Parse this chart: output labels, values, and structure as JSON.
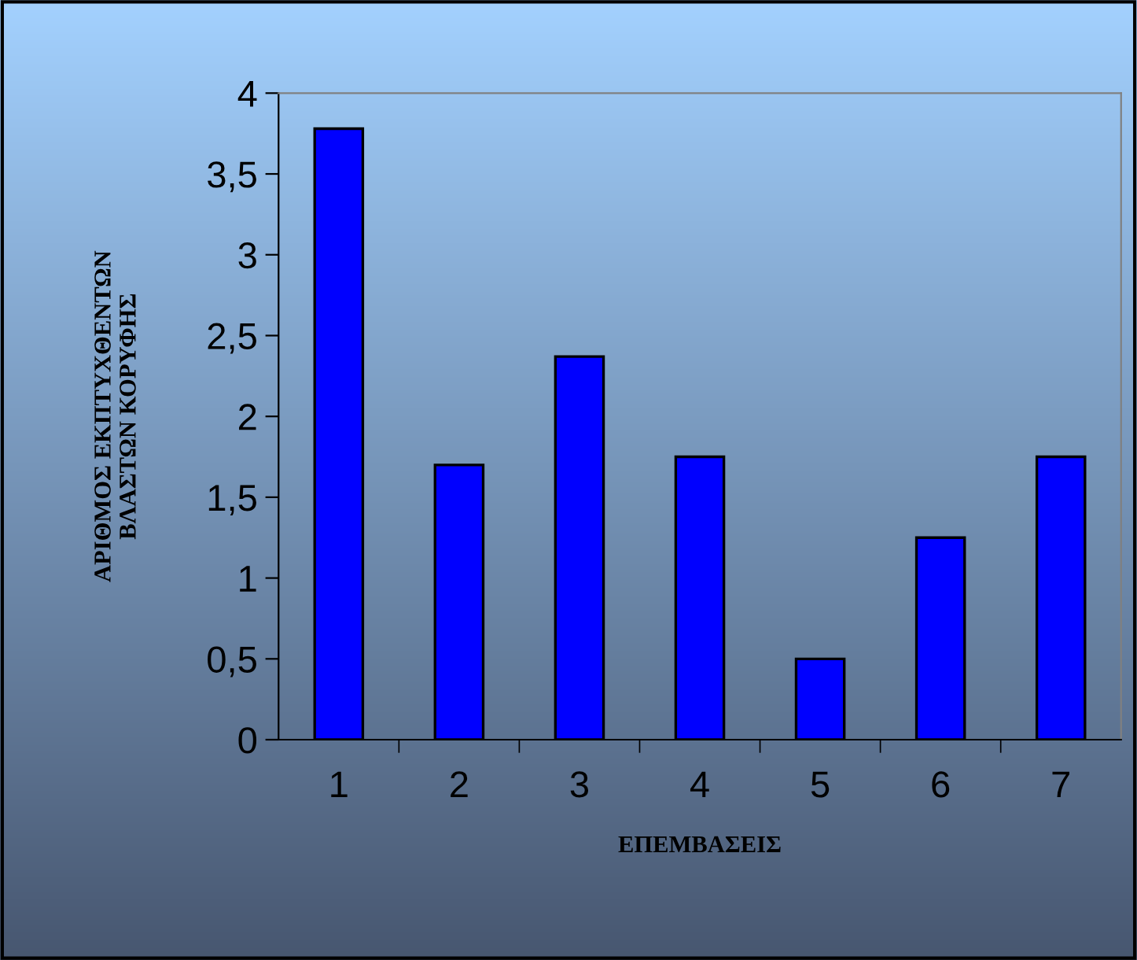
{
  "chart_data": {
    "type": "bar",
    "xlabel": "ΕΠΕΜΒΑΣΕΙΣ",
    "ylabel": "ΑΡΙΘΜΟΣ ΕΚΠΤΥΧΘΕΝΤΩΝ\nΒΛΑΣΤΩΝ ΚΟΡΥΦΗΣ",
    "categories": [
      "1",
      "2",
      "3",
      "4",
      "5",
      "6",
      "7"
    ],
    "values": [
      3.78,
      1.7,
      2.37,
      1.75,
      0.5,
      1.25,
      1.75
    ],
    "color": "#0000ff",
    "ylim": [
      0,
      4
    ],
    "yticks": [
      0,
      {
        "value": 0.5,
        "label": "0,5"
      },
      1,
      {
        "value": 1.5,
        "label": "1,5"
      },
      2,
      {
        "value": 2.5,
        "label": "2,5"
      },
      3,
      {
        "value": 3.5,
        "label": "3,5"
      },
      4
    ],
    "grid": false,
    "legend": false
  }
}
